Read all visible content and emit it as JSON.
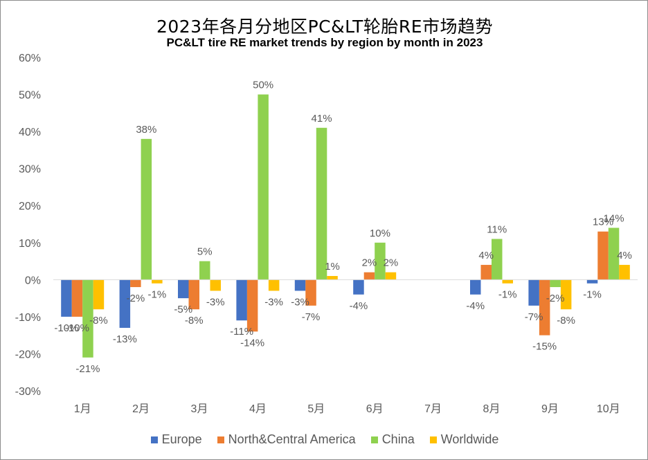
{
  "chart_data": {
    "type": "bar",
    "title": "2023年各月分地区PC&LT轮胎RE市场趋势",
    "subtitle": "PC&LT tire RE market trends by region by month in 2023",
    "categories": [
      "1月",
      "2月",
      "3月",
      "4月",
      "5月",
      "6月",
      "7月",
      "8月",
      "9月",
      "10月"
    ],
    "ylim": [
      -30,
      60
    ],
    "yticks": [
      -30,
      -20,
      -10,
      0,
      10,
      20,
      30,
      40,
      50,
      60
    ],
    "ytick_labels": [
      "-30%",
      "-20%",
      "-10%",
      "0%",
      "10%",
      "20%",
      "30%",
      "40%",
      "50%",
      "60%"
    ],
    "grid": false,
    "legend_position": "bottom",
    "series": [
      {
        "name": "Europe",
        "color": "#4472c4",
        "values": [
          -10,
          -13,
          -5,
          -11,
          -3,
          -4,
          null,
          -4,
          -7,
          -1
        ],
        "labels": [
          "-10%",
          "-13%",
          "-5%",
          "-11%",
          "-3%",
          "-4%",
          "",
          "-4%",
          "-7%",
          "-1%"
        ]
      },
      {
        "name": "North&Central America",
        "color": "#ed7d31",
        "values": [
          -10,
          -2,
          -8,
          -14,
          -7,
          2,
          null,
          4,
          -15,
          13
        ],
        "labels": [
          "-10%",
          "-2%",
          "-8%",
          "-14%",
          "-7%",
          "2%",
          "",
          "4%",
          "-15%",
          "13%"
        ]
      },
      {
        "name": "China",
        "color": "#8fd14f",
        "values": [
          -21,
          38,
          5,
          50,
          41,
          10,
          null,
          11,
          -2,
          14
        ],
        "labels": [
          "-21%",
          "38%",
          "5%",
          "50%",
          "41%",
          "10%",
          "",
          "11%",
          "-2%",
          "14%"
        ]
      },
      {
        "name": "Worldwide",
        "color": "#ffc000",
        "values": [
          -8,
          -1,
          -3,
          -3,
          1,
          2,
          null,
          -1,
          -8,
          4
        ],
        "labels": [
          "-8%",
          "-1%",
          "-3%",
          "-3%",
          "1%",
          "2%",
          "",
          "-1%",
          "-8%",
          "4%"
        ]
      }
    ]
  }
}
